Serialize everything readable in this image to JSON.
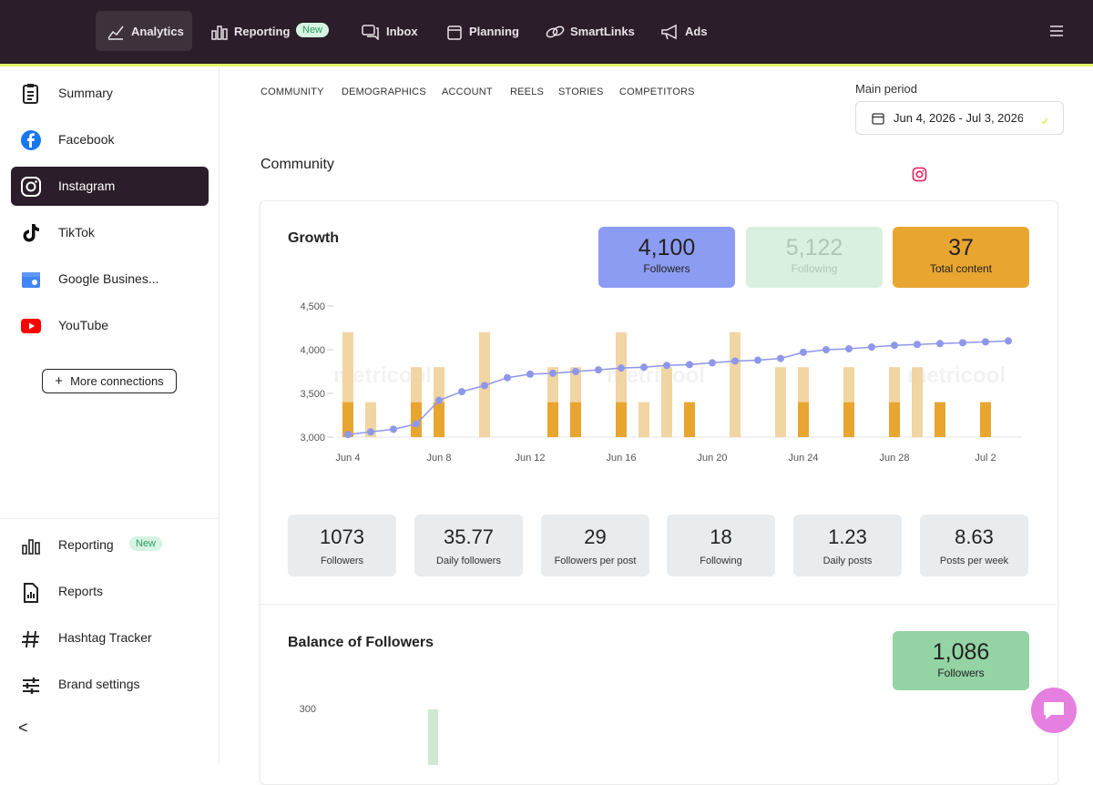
{
  "nav": {
    "items": [
      "Analytics",
      "Reporting",
      "Inbox",
      "Planning",
      "SmartLinks",
      "Ads"
    ],
    "badge": "New"
  },
  "sidebar": {
    "networks": [
      "Summary",
      "Facebook",
      "Instagram",
      "TikTok",
      "Google Busines...",
      "YouTube"
    ],
    "more_button": "More connections",
    "bottom": [
      "Reporting",
      "Reports",
      "Hashtag Tracker",
      "Brand settings"
    ],
    "badge": "New",
    "collapse": "<"
  },
  "tabs": [
    "COMMUNITY",
    "DEMOGRAPHICS",
    "ACCOUNT",
    "REELS",
    "STORIES",
    "COMPETITORS"
  ],
  "period": {
    "label": "Main period",
    "value": "Jun 4, 2026 - Jul 3, 2026"
  },
  "section_title": "Community",
  "growth": {
    "title": "Growth",
    "kpis": [
      {
        "value": "4,100",
        "label": "Followers"
      },
      {
        "value": "5,122",
        "label": "Following"
      },
      {
        "value": "37",
        "label": "Total content"
      }
    ]
  },
  "chart_data": {
    "type": "combo",
    "watermark": "metricool",
    "categories": [
      "Jun 4",
      null,
      null,
      null,
      "Jun 8",
      null,
      null,
      null,
      "Jun 12",
      null,
      null,
      null,
      "Jun 16",
      null,
      null,
      null,
      "Jun 20",
      null,
      null,
      null,
      "Jun 24",
      null,
      null,
      null,
      "Jun 28",
      null,
      null,
      null,
      "Jul 2",
      null
    ],
    "series": [
      {
        "type": "line",
        "color": "#8e97ea",
        "values": [
          3030,
          3060,
          3090,
          3150,
          3420,
          3520,
          3590,
          3680,
          3720,
          3730,
          3750,
          3770,
          3790,
          3800,
          3820,
          3830,
          3850,
          3870,
          3880,
          3900,
          3970,
          4000,
          4010,
          4030,
          4050,
          4060,
          4070,
          4080,
          4090,
          4100
        ]
      },
      {
        "type": "bar",
        "axis": "y2",
        "color": "#e8a530",
        "values": [
          1,
          0,
          0,
          1,
          1,
          0,
          0,
          0,
          0,
          1,
          1,
          0,
          1,
          0,
          0,
          1,
          0,
          0,
          0,
          0,
          1,
          0,
          1,
          0,
          1,
          0,
          1,
          0,
          1,
          0
        ]
      },
      {
        "type": "bar",
        "axis": "y2",
        "color": "#f1d5a3",
        "stacked": true,
        "values": [
          2,
          1,
          0,
          1,
          1,
          0,
          3,
          0,
          0,
          1,
          1,
          0,
          2,
          1,
          2,
          0,
          0,
          3,
          0,
          2,
          1,
          0,
          1,
          0,
          1,
          2,
          0,
          0,
          0,
          0
        ]
      }
    ],
    "ylim": [
      3000,
      4500
    ],
    "yticks": [
      {
        "value": 3000,
        "label": "3,000"
      },
      {
        "value": 3500,
        "label": "3,500"
      },
      {
        "value": 4000,
        "label": "4,000"
      },
      {
        "value": 4500,
        "label": "4,500"
      }
    ],
    "y2lim": [
      0,
      3.75
    ]
  },
  "stats": [
    {
      "value": "1073",
      "label": "Followers"
    },
    {
      "value": "35.77",
      "label": "Daily followers"
    },
    {
      "value": "29",
      "label": "Followers per post"
    },
    {
      "value": "18",
      "label": "Following"
    },
    {
      "value": "1.23",
      "label": "Daily posts"
    },
    {
      "value": "8.63",
      "label": "Posts per week"
    }
  ],
  "balance": {
    "title": "Balance of Followers",
    "kpi": {
      "value": "1,086",
      "label": "Followers"
    },
    "yticks": [
      300
    ],
    "bar": 300,
    "color": "#cde9d4"
  }
}
